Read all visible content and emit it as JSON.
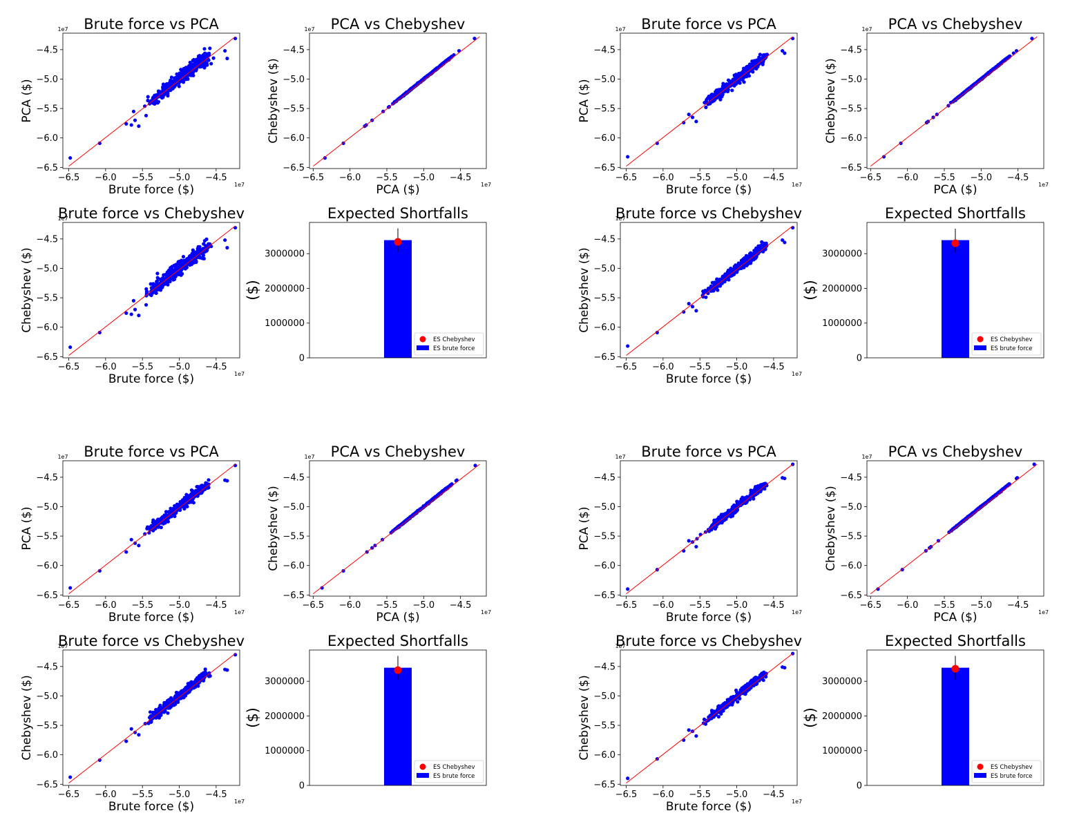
{
  "colors": {
    "points": "#0000ff",
    "line": "#ff0000",
    "bar": "#0000ff",
    "marker": "#ff0000",
    "axes": "#000000",
    "errbar": "#000000"
  },
  "chart_data": [
    {
      "type": "scatter",
      "title": "Brute force vs PCA",
      "xlabel": "Brute force ($)",
      "ylabel": "PCA ($)",
      "offset_text": "1e7",
      "xlim": [
        -6.58,
        -4.18
      ],
      "ylim": [
        -6.52,
        -4.22
      ],
      "xticks": [
        -6.5,
        -6.0,
        -5.5,
        -5.0,
        -4.5
      ],
      "yticks": [
        -6.5,
        -6.0,
        -5.5,
        -5.0,
        -4.5
      ],
      "xtick_labels": [
        "−6.5",
        "−6.0",
        "−5.5",
        "−5.0",
        "−4.5"
      ],
      "ytick_labels": [
        "−6.5",
        "−6.0",
        "−5.5",
        "−5.0",
        "−4.5"
      ],
      "spread": 0.05,
      "seed": 11,
      "outliers": [
        [
          -6.48,
          -6.34
        ],
        [
          -6.08,
          -6.09
        ],
        [
          -5.72,
          -5.76
        ],
        [
          -5.65,
          -5.78
        ],
        [
          -5.62,
          -5.55
        ],
        [
          -5.6,
          -5.7
        ],
        [
          -5.55,
          -5.8
        ],
        [
          -5.45,
          -5.62
        ],
        [
          -4.38,
          -4.52
        ],
        [
          -4.35,
          -4.65
        ],
        [
          -4.24,
          -4.31
        ],
        [
          -4.6,
          -4.59
        ],
        [
          -4.72,
          -4.67
        ]
      ]
    },
    {
      "type": "scatter",
      "title": "PCA vs Chebyshev",
      "xlabel": "PCA ($)",
      "ylabel": "Chebyshev ($)",
      "offset_text": "1e7",
      "xlim": [
        -6.55,
        -4.15
      ],
      "ylim": [
        -6.52,
        -4.22
      ],
      "xticks": [
        -6.5,
        -6.0,
        -5.5,
        -5.0,
        -4.5
      ],
      "yticks": [
        -6.5,
        -6.0,
        -5.5,
        -5.0,
        -4.5
      ],
      "xtick_labels": [
        "−6.5",
        "−6.0",
        "−5.5",
        "−5.0",
        "−4.5"
      ],
      "ytick_labels": [
        "−6.5",
        "−6.0",
        "−5.5",
        "−5.0",
        "−4.5"
      ],
      "spread": 0.004,
      "seed": 12,
      "outliers": [
        [
          -6.34,
          -6.34
        ],
        [
          -6.09,
          -6.09
        ],
        [
          -5.8,
          -5.8
        ],
        [
          -5.78,
          -5.78
        ],
        [
          -5.7,
          -5.7
        ],
        [
          -5.55,
          -5.55
        ],
        [
          -4.67,
          -4.67
        ],
        [
          -4.59,
          -4.59
        ],
        [
          -4.52,
          -4.52
        ],
        [
          -4.31,
          -4.31
        ]
      ]
    },
    {
      "type": "scatter",
      "title": "Brute force vs PCA",
      "xlabel": "Brute force ($)",
      "ylabel": "PCA ($)",
      "offset_text": "1e7",
      "xlim": [
        -6.58,
        -4.18
      ],
      "ylim": [
        -6.52,
        -4.22
      ],
      "xticks": [
        -6.5,
        -6.0,
        -5.5,
        -5.0,
        -4.5
      ],
      "yticks": [
        -6.5,
        -6.0,
        -5.5,
        -5.0,
        -4.5
      ],
      "xtick_labels": [
        "−6.5",
        "−6.0",
        "−5.5",
        "−5.0",
        "−4.5"
      ],
      "ytick_labels": [
        "−6.5",
        "−6.0",
        "−5.5",
        "−5.0",
        "−4.5"
      ],
      "spread": 0.035,
      "seed": 21,
      "outliers": [
        [
          -6.48,
          -6.32
        ],
        [
          -6.08,
          -6.09
        ],
        [
          -5.72,
          -5.74
        ],
        [
          -5.65,
          -5.6
        ],
        [
          -5.6,
          -5.65
        ],
        [
          -5.55,
          -5.72
        ],
        [
          -4.38,
          -4.52
        ],
        [
          -4.35,
          -4.56
        ],
        [
          -4.24,
          -4.31
        ],
        [
          -4.6,
          -4.61
        ]
      ]
    },
    {
      "type": "scatter",
      "title": "PCA vs Chebyshev",
      "xlabel": "PCA ($)",
      "ylabel": "Chebyshev ($)",
      "offset_text": "1e7",
      "xlim": [
        -6.55,
        -4.15
      ],
      "ylim": [
        -6.52,
        -4.22
      ],
      "xticks": [
        -6.5,
        -6.0,
        -5.5,
        -5.0,
        -4.5
      ],
      "yticks": [
        -6.5,
        -6.0,
        -5.5,
        -5.0,
        -4.5
      ],
      "xtick_labels": [
        "−6.5",
        "−6.0",
        "−5.5",
        "−5.0",
        "−4.5"
      ],
      "ytick_labels": [
        "−6.5",
        "−6.0",
        "−5.5",
        "−5.0",
        "−4.5"
      ],
      "spread": 0.004,
      "seed": 22,
      "outliers": [
        [
          -6.32,
          -6.32
        ],
        [
          -6.09,
          -6.09
        ],
        [
          -5.74,
          -5.74
        ],
        [
          -5.72,
          -5.72
        ],
        [
          -5.65,
          -5.65
        ],
        [
          -5.6,
          -5.6
        ],
        [
          -4.61,
          -4.61
        ],
        [
          -4.56,
          -4.56
        ],
        [
          -4.52,
          -4.52
        ],
        [
          -4.31,
          -4.31
        ]
      ]
    },
    {
      "type": "scatter",
      "title": "Brute force vs Chebyshev",
      "xlabel": "Brute force ($)",
      "ylabel": "Chebyshev ($)",
      "offset_text": "1e7",
      "xlim": [
        -6.58,
        -4.18
      ],
      "ylim": [
        -6.52,
        -4.22
      ],
      "xticks": [
        -6.5,
        -6.0,
        -5.5,
        -5.0,
        -4.5
      ],
      "yticks": [
        -6.5,
        -6.0,
        -5.5,
        -5.0,
        -4.5
      ],
      "xtick_labels": [
        "−6.5",
        "−6.0",
        "−5.5",
        "−5.0",
        "−4.5"
      ],
      "ytick_labels": [
        "−6.5",
        "−6.0",
        "−5.5",
        "−5.0",
        "−4.5"
      ],
      "spread": 0.05,
      "seed": 13,
      "outliers": [
        [
          -6.48,
          -6.34
        ],
        [
          -6.08,
          -6.09
        ],
        [
          -5.72,
          -5.76
        ],
        [
          -5.65,
          -5.78
        ],
        [
          -5.62,
          -5.55
        ],
        [
          -5.6,
          -5.7
        ],
        [
          -5.55,
          -5.8
        ],
        [
          -5.45,
          -5.62
        ],
        [
          -4.38,
          -4.52
        ],
        [
          -4.35,
          -4.65
        ],
        [
          -4.24,
          -4.31
        ],
        [
          -4.6,
          -4.59
        ],
        [
          -4.72,
          -4.67
        ]
      ]
    },
    {
      "type": "bar",
      "title": "Expected Shortfalls",
      "ylabel": "($)",
      "ylim": [
        0,
        3900000
      ],
      "yticks": [
        0,
        1000000,
        2000000,
        3000000
      ],
      "ytick_labels": [
        "0",
        "1000000",
        "2000000",
        "3000000"
      ],
      "bar_value": 3390000,
      "point_value": 3340000,
      "err_low": 3050000,
      "err_high": 3730000,
      "legend": [
        "ES Chebyshev",
        "ES brute force"
      ],
      "legend_loc": "lower right"
    },
    {
      "type": "scatter",
      "title": "Brute force vs Chebyshev",
      "xlabel": "Brute force ($)",
      "ylabel": "Chebyshev ($)",
      "offset_text": "1e7",
      "xlim": [
        -6.58,
        -4.18
      ],
      "ylim": [
        -6.52,
        -4.22
      ],
      "xticks": [
        -6.5,
        -6.0,
        -5.5,
        -5.0,
        -4.5
      ],
      "yticks": [
        -6.5,
        -6.0,
        -5.5,
        -5.0,
        -4.5
      ],
      "xtick_labels": [
        "−6.5",
        "−6.0",
        "−5.5",
        "−5.0",
        "−4.5"
      ],
      "ytick_labels": [
        "−6.5",
        "−6.0",
        "−5.5",
        "−5.0",
        "−4.5"
      ],
      "spread": 0.035,
      "seed": 23,
      "outliers": [
        [
          -6.48,
          -6.32
        ],
        [
          -6.08,
          -6.09
        ],
        [
          -5.72,
          -5.74
        ],
        [
          -5.65,
          -5.6
        ],
        [
          -5.6,
          -5.65
        ],
        [
          -5.55,
          -5.72
        ],
        [
          -4.38,
          -4.52
        ],
        [
          -4.35,
          -4.56
        ],
        [
          -4.24,
          -4.31
        ],
        [
          -4.6,
          -4.61
        ]
      ]
    },
    {
      "type": "bar",
      "title": "Expected Shortfalls",
      "ylabel": "($)",
      "ylim": [
        0,
        3900000
      ],
      "yticks": [
        0,
        1000000,
        2000000,
        3000000
      ],
      "ytick_labels": [
        "0",
        "1000000",
        "2000000",
        "3000000"
      ],
      "bar_value": 3390000,
      "point_value": 3300000,
      "err_low": 3040000,
      "err_high": 3720000,
      "legend": [
        "ES Chebyshev",
        "ES brute force"
      ],
      "legend_loc": "lower right"
    },
    {
      "type": "scatter",
      "title": "Brute force vs PCA",
      "xlabel": "Brute force ($)",
      "ylabel": "PCA ($)",
      "offset_text": "1e7",
      "xlim": [
        -6.58,
        -4.18
      ],
      "ylim": [
        -6.52,
        -4.22
      ],
      "xticks": [
        -6.5,
        -6.0,
        -5.5,
        -5.0,
        -4.5
      ],
      "yticks": [
        -6.5,
        -6.0,
        -5.5,
        -5.0,
        -4.5
      ],
      "xtick_labels": [
        "−6.5",
        "−6.0",
        "−5.5",
        "−5.0",
        "−4.5"
      ],
      "ytick_labels": [
        "−6.5",
        "−6.0",
        "−5.5",
        "−5.0",
        "−4.5"
      ],
      "spread": 0.035,
      "seed": 31,
      "outliers": [
        [
          -6.48,
          -6.38
        ],
        [
          -6.08,
          -6.09
        ],
        [
          -5.72,
          -5.77
        ],
        [
          -5.65,
          -5.56
        ],
        [
          -5.6,
          -5.62
        ],
        [
          -5.55,
          -5.66
        ],
        [
          -4.38,
          -4.55
        ],
        [
          -4.35,
          -4.56
        ],
        [
          -4.24,
          -4.3
        ],
        [
          -4.6,
          -4.62
        ]
      ]
    },
    {
      "type": "scatter",
      "title": "PCA vs Chebyshev",
      "xlabel": "PCA ($)",
      "ylabel": "Chebyshev ($)",
      "offset_text": "1e7",
      "xlim": [
        -6.55,
        -4.15
      ],
      "ylim": [
        -6.52,
        -4.22
      ],
      "xticks": [
        -6.5,
        -6.0,
        -5.5,
        -5.0,
        -4.5
      ],
      "yticks": [
        -6.5,
        -6.0,
        -5.5,
        -5.0,
        -4.5
      ],
      "xtick_labels": [
        "−6.5",
        "−6.0",
        "−5.5",
        "−5.0",
        "−4.5"
      ],
      "ytick_labels": [
        "−6.5",
        "−6.0",
        "−5.5",
        "−5.0",
        "−4.5"
      ],
      "spread": 0.004,
      "seed": 32,
      "outliers": [
        [
          -6.38,
          -6.38
        ],
        [
          -6.09,
          -6.09
        ],
        [
          -5.77,
          -5.77
        ],
        [
          -5.7,
          -5.7
        ],
        [
          -5.66,
          -5.66
        ],
        [
          -5.56,
          -5.56
        ],
        [
          -4.62,
          -4.62
        ],
        [
          -4.56,
          -4.56
        ],
        [
          -4.55,
          -4.55
        ],
        [
          -4.3,
          -4.3
        ]
      ]
    },
    {
      "type": "scatter",
      "title": "Brute force vs PCA",
      "xlabel": "Brute force ($)",
      "ylabel": "PCA ($)",
      "offset_text": "1e7",
      "xlim": [
        -6.58,
        -4.18
      ],
      "ylim": [
        -6.52,
        -4.22
      ],
      "xticks": [
        -6.5,
        -6.0,
        -5.5,
        -5.0,
        -4.5
      ],
      "yticks": [
        -6.5,
        -6.0,
        -5.5,
        -5.0,
        -4.5
      ],
      "xtick_labels": [
        "−6.5",
        "−6.0",
        "−5.5",
        "−5.0",
        "−4.5"
      ],
      "ytick_labels": [
        "−6.5",
        "−6.0",
        "−5.5",
        "−5.0",
        "−4.5"
      ],
      "spread": 0.03,
      "seed": 41,
      "outliers": [
        [
          -6.48,
          -6.4
        ],
        [
          -6.08,
          -6.07
        ],
        [
          -5.72,
          -5.75
        ],
        [
          -5.65,
          -5.58
        ],
        [
          -5.6,
          -5.6
        ],
        [
          -5.55,
          -5.68
        ],
        [
          -4.38,
          -4.51
        ],
        [
          -4.35,
          -4.52
        ],
        [
          -4.24,
          -4.28
        ],
        [
          -4.6,
          -4.62
        ]
      ]
    },
    {
      "type": "scatter",
      "title": "PCA vs Chebyshev",
      "xlabel": "PCA ($)",
      "ylabel": "Chebyshev ($)",
      "offset_text": "1e7",
      "xlim": [
        -6.55,
        -4.15
      ],
      "ylim": [
        -6.52,
        -4.22
      ],
      "xticks": [
        -6.5,
        -6.0,
        -5.5,
        -5.0,
        -4.5
      ],
      "yticks": [
        -6.5,
        -6.0,
        -5.5,
        -5.0,
        -4.5
      ],
      "xtick_labels": [
        "−6.5",
        "−6.0",
        "−5.5",
        "−5.0",
        "−4.5"
      ],
      "ytick_labels": [
        "−6.5",
        "−6.0",
        "−5.5",
        "−5.0",
        "−4.5"
      ],
      "spread": 0.004,
      "seed": 42,
      "outliers": [
        [
          -6.4,
          -6.4
        ],
        [
          -6.07,
          -6.07
        ],
        [
          -5.75,
          -5.75
        ],
        [
          -5.7,
          -5.7
        ],
        [
          -5.68,
          -5.68
        ],
        [
          -5.58,
          -5.58
        ],
        [
          -4.62,
          -4.62
        ],
        [
          -4.52,
          -4.52
        ],
        [
          -4.51,
          -4.51
        ],
        [
          -4.28,
          -4.28
        ]
      ]
    },
    {
      "type": "scatter",
      "title": "Brute force vs Chebyshev",
      "xlabel": "Brute force ($)",
      "ylabel": "Chebyshev ($)",
      "offset_text": "1e7",
      "xlim": [
        -6.58,
        -4.18
      ],
      "ylim": [
        -6.52,
        -4.22
      ],
      "xticks": [
        -6.5,
        -6.0,
        -5.5,
        -5.0,
        -4.5
      ],
      "yticks": [
        -6.5,
        -6.0,
        -5.5,
        -5.0,
        -4.5
      ],
      "xtick_labels": [
        "−6.5",
        "−6.0",
        "−5.5",
        "−5.0",
        "−4.5"
      ],
      "ytick_labels": [
        "−6.5",
        "−6.0",
        "−5.5",
        "−5.0",
        "−4.5"
      ],
      "spread": 0.035,
      "seed": 33,
      "outliers": [
        [
          -6.48,
          -6.38
        ],
        [
          -6.08,
          -6.09
        ],
        [
          -5.72,
          -5.77
        ],
        [
          -5.65,
          -5.56
        ],
        [
          -5.6,
          -5.62
        ],
        [
          -5.55,
          -5.66
        ],
        [
          -4.38,
          -4.55
        ],
        [
          -4.35,
          -4.56
        ],
        [
          -4.24,
          -4.3
        ],
        [
          -4.6,
          -4.62
        ]
      ]
    },
    {
      "type": "bar",
      "title": "Expected Shortfalls",
      "ylabel": "($)",
      "ylim": [
        0,
        3900000
      ],
      "yticks": [
        0,
        1000000,
        2000000,
        3000000
      ],
      "ytick_labels": [
        "0",
        "1000000",
        "2000000",
        "3000000"
      ],
      "bar_value": 3390000,
      "point_value": 3320000,
      "err_low": 3050000,
      "err_high": 3730000,
      "legend": [
        "ES Chebyshev",
        "ES brute force"
      ],
      "legend_loc": "lower right"
    },
    {
      "type": "scatter",
      "title": "Brute force vs Chebyshev",
      "xlabel": "Brute force ($)",
      "ylabel": "Chebyshev ($)",
      "offset_text": "1e7",
      "xlim": [
        -6.58,
        -4.18
      ],
      "ylim": [
        -6.52,
        -4.22
      ],
      "xticks": [
        -6.5,
        -6.0,
        -5.5,
        -5.0,
        -4.5
      ],
      "yticks": [
        -6.5,
        -6.0,
        -5.5,
        -5.0,
        -4.5
      ],
      "xtick_labels": [
        "−6.5",
        "−6.0",
        "−5.5",
        "−5.0",
        "−4.5"
      ],
      "ytick_labels": [
        "−6.5",
        "−6.0",
        "−5.5",
        "−5.0",
        "−4.5"
      ],
      "spread": 0.03,
      "seed": 43,
      "outliers": [
        [
          -6.48,
          -6.4
        ],
        [
          -6.08,
          -6.07
        ],
        [
          -5.72,
          -5.75
        ],
        [
          -5.65,
          -5.58
        ],
        [
          -5.6,
          -5.6
        ],
        [
          -5.55,
          -5.68
        ],
        [
          -4.38,
          -4.51
        ],
        [
          -4.35,
          -4.52
        ],
        [
          -4.24,
          -4.28
        ],
        [
          -4.6,
          -4.62
        ]
      ]
    },
    {
      "type": "bar",
      "title": "Expected Shortfalls",
      "ylabel": "($)",
      "ylim": [
        0,
        3900000
      ],
      "yticks": [
        0,
        1000000,
        2000000,
        3000000
      ],
      "ytick_labels": [
        "0",
        "1000000",
        "2000000",
        "3000000"
      ],
      "bar_value": 3390000,
      "point_value": 3360000,
      "err_low": 3050000,
      "err_high": 3730000,
      "legend": [
        "ES Chebyshev",
        "ES brute force"
      ],
      "legend_loc": "lower right"
    }
  ]
}
